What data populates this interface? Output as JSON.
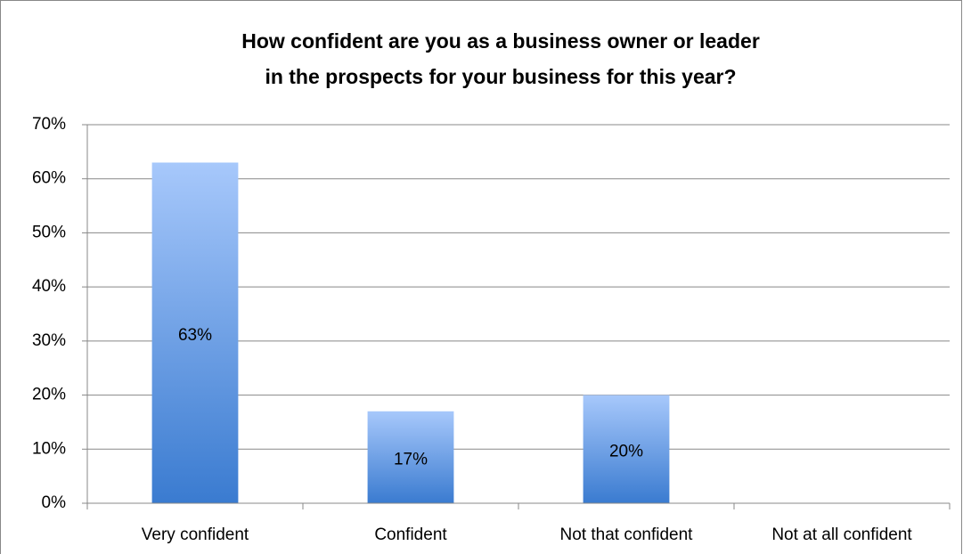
{
  "chart_data": {
    "type": "bar",
    "title": [
      "How confident are you as a business owner or leader",
      "in the prospects for your business for this year?"
    ],
    "categories": [
      "Very confident",
      "Confident",
      "Not that confident",
      "Not at all confident"
    ],
    "values": [
      63,
      17,
      20,
      0
    ],
    "value_labels": [
      "63%",
      "17%",
      "20%",
      null
    ],
    "gradient": [
      "#a7c8fb",
      "#3a7bd0"
    ],
    "ylim": [
      0,
      70
    ],
    "yticks": [
      {
        "value": 0,
        "label": "0%"
      },
      {
        "value": 10,
        "label": "10%"
      },
      {
        "value": 20,
        "label": "20%"
      },
      {
        "value": 30,
        "label": "30%"
      },
      {
        "value": 40,
        "label": "40%"
      },
      {
        "value": 50,
        "label": "50%"
      },
      {
        "value": 60,
        "label": "60%"
      },
      {
        "value": 70,
        "label": "70%"
      }
    ],
    "grid": true
  }
}
